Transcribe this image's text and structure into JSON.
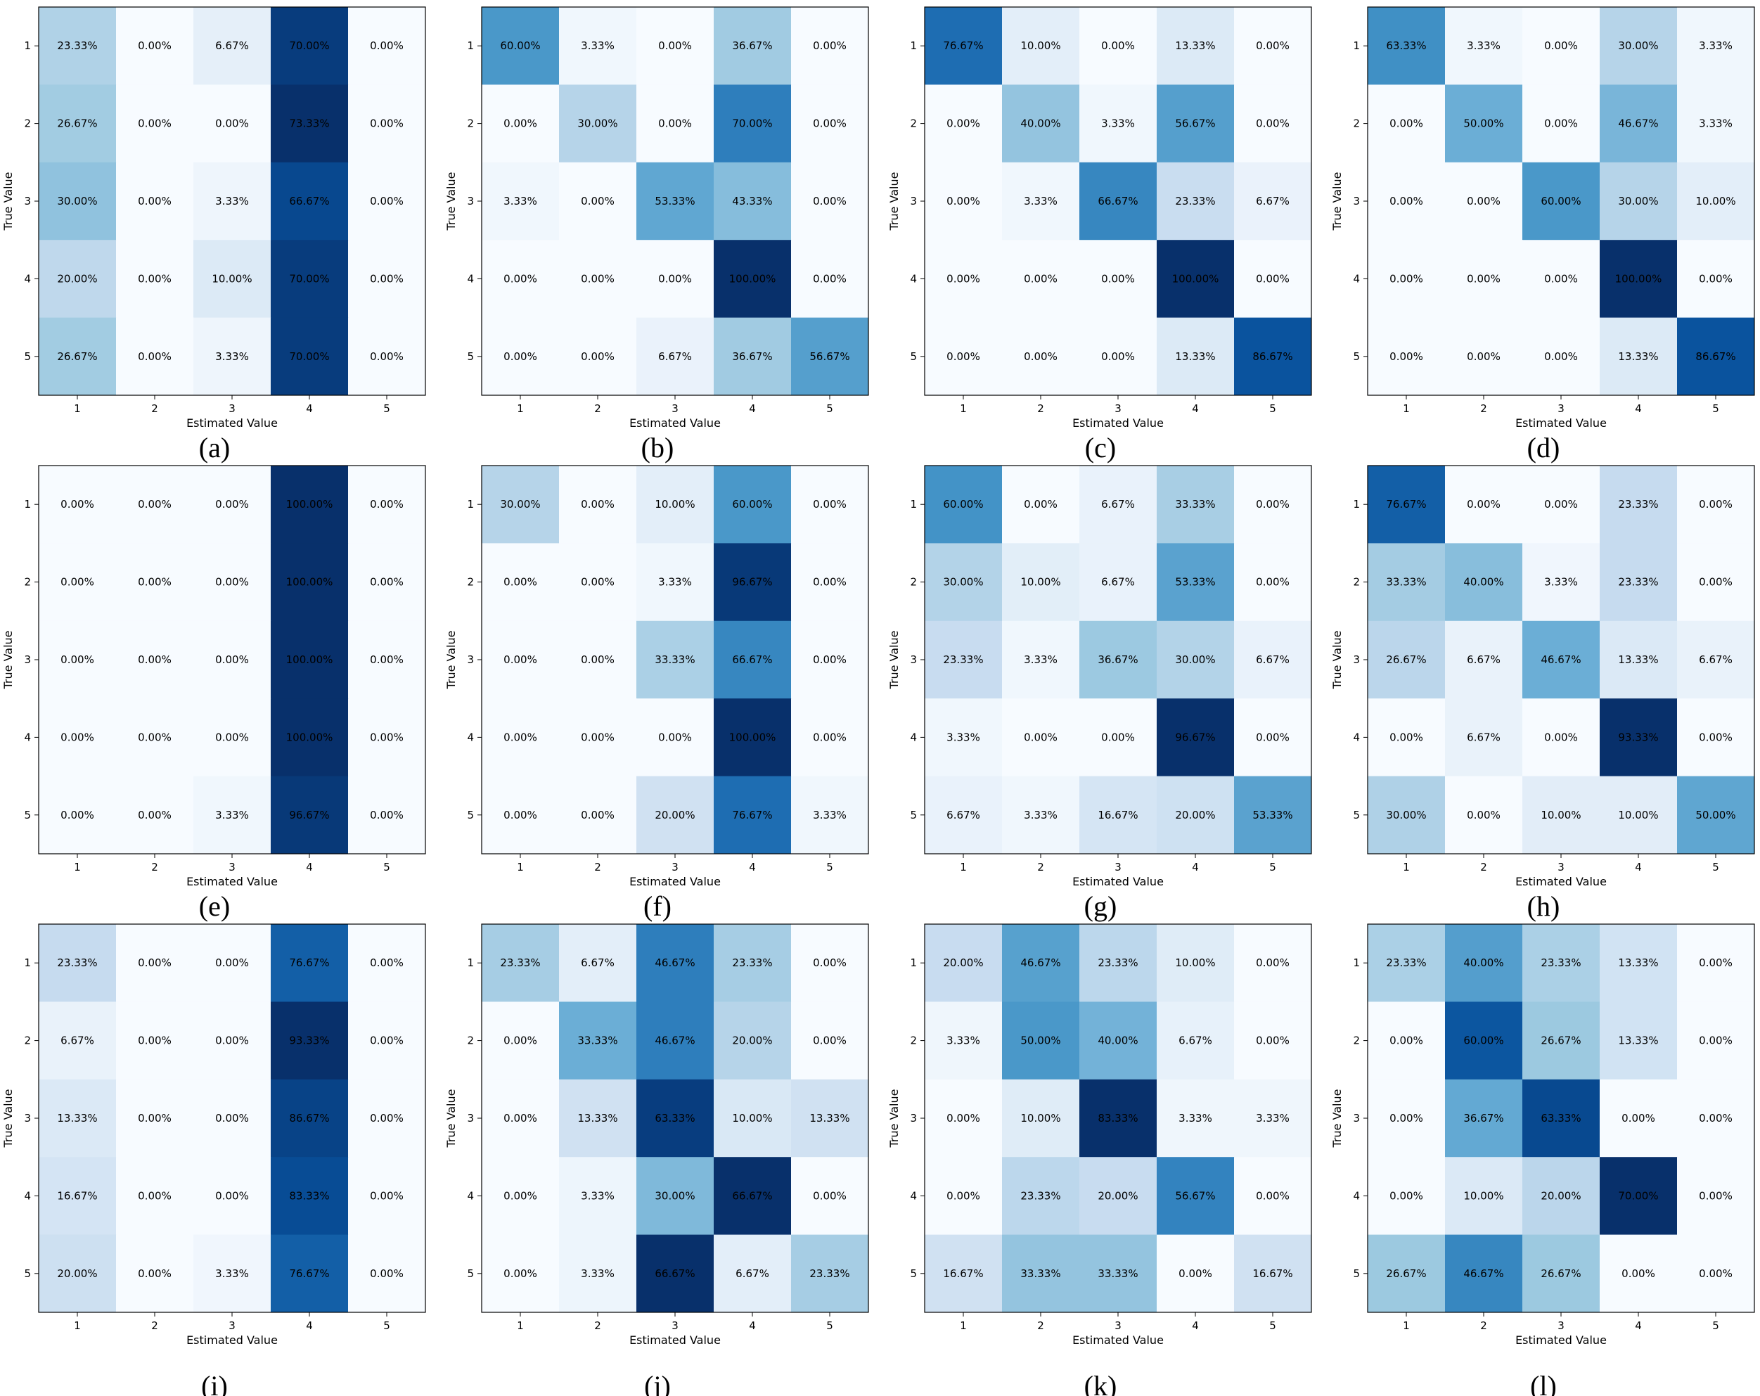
{
  "chart_data": [
    {
      "type": "heatmap",
      "label": "(a)",
      "xlabel": "Estimated Value",
      "ylabel": "True Value",
      "categories": [
        "1",
        "2",
        "3",
        "4",
        "5"
      ],
      "values": [
        [
          23.33,
          0,
          6.67,
          70,
          0
        ],
        [
          26.67,
          0,
          0,
          73.33,
          0
        ],
        [
          30,
          0,
          3.33,
          66.67,
          0
        ],
        [
          20,
          0,
          10,
          70,
          0
        ],
        [
          26.67,
          0,
          3.33,
          70,
          0
        ]
      ]
    },
    {
      "type": "heatmap",
      "label": "(b)",
      "xlabel": "Estimated Value",
      "ylabel": "True Value",
      "categories": [
        "1",
        "2",
        "3",
        "4",
        "5"
      ],
      "values": [
        [
          60,
          3.33,
          0,
          36.67,
          0
        ],
        [
          0,
          30,
          0,
          70,
          0
        ],
        [
          3.33,
          0,
          53.33,
          43.33,
          0
        ],
        [
          0,
          0,
          0,
          100,
          0
        ],
        [
          0,
          0,
          6.67,
          36.67,
          56.67
        ]
      ]
    },
    {
      "type": "heatmap",
      "label": "(c)",
      "xlabel": "Estimated Value",
      "ylabel": "True Value",
      "categories": [
        "1",
        "2",
        "3",
        "4",
        "5"
      ],
      "values": [
        [
          76.67,
          10,
          0,
          13.33,
          0
        ],
        [
          0,
          40,
          3.33,
          56.67,
          0
        ],
        [
          0,
          3.33,
          66.67,
          23.33,
          6.67
        ],
        [
          0,
          0,
          0,
          100,
          0
        ],
        [
          0,
          0,
          0,
          13.33,
          86.67
        ]
      ]
    },
    {
      "type": "heatmap",
      "label": "(d)",
      "xlabel": "Estimated Value",
      "ylabel": "True Value",
      "categories": [
        "1",
        "2",
        "3",
        "4",
        "5"
      ],
      "values": [
        [
          63.33,
          3.33,
          0,
          30,
          3.33
        ],
        [
          0,
          50,
          0,
          46.67,
          3.33
        ],
        [
          0,
          0,
          60,
          30,
          10
        ],
        [
          0,
          0,
          0,
          100,
          0
        ],
        [
          0,
          0,
          0,
          13.33,
          86.67
        ]
      ]
    },
    {
      "type": "heatmap",
      "label": "(e)",
      "xlabel": "Estimated Value",
      "ylabel": "True Value",
      "categories": [
        "1",
        "2",
        "3",
        "4",
        "5"
      ],
      "values": [
        [
          0,
          0,
          0,
          100,
          0
        ],
        [
          0,
          0,
          0,
          100,
          0
        ],
        [
          0,
          0,
          0,
          100,
          0
        ],
        [
          0,
          0,
          0,
          100,
          0
        ],
        [
          0,
          0,
          3.33,
          96.67,
          0
        ]
      ]
    },
    {
      "type": "heatmap",
      "label": "(f)",
      "xlabel": "Estimated Value",
      "ylabel": "True Value",
      "categories": [
        "1",
        "2",
        "3",
        "4",
        "5"
      ],
      "values": [
        [
          30,
          0,
          10,
          60,
          0
        ],
        [
          0,
          0,
          3.33,
          96.67,
          0
        ],
        [
          0,
          0,
          33.33,
          66.67,
          0
        ],
        [
          0,
          0,
          0,
          100,
          0
        ],
        [
          0,
          0,
          20,
          76.67,
          3.33
        ]
      ]
    },
    {
      "type": "heatmap",
      "label": "(g)",
      "xlabel": "Estimated Value",
      "ylabel": "True Value",
      "categories": [
        "1",
        "2",
        "3",
        "4",
        "5"
      ],
      "values": [
        [
          60,
          0,
          6.67,
          33.33,
          0
        ],
        [
          30,
          10,
          6.67,
          53.33,
          0
        ],
        [
          23.33,
          3.33,
          36.67,
          30,
          6.67
        ],
        [
          3.33,
          0,
          0,
          96.67,
          0
        ],
        [
          6.67,
          3.33,
          16.67,
          20,
          53.33
        ]
      ]
    },
    {
      "type": "heatmap",
      "label": "(h)",
      "xlabel": "Estimated Value",
      "ylabel": "True Value",
      "categories": [
        "1",
        "2",
        "3",
        "4",
        "5"
      ],
      "values": [
        [
          76.67,
          0,
          0,
          23.33,
          0
        ],
        [
          33.33,
          40,
          3.33,
          23.33,
          0
        ],
        [
          26.67,
          6.67,
          46.67,
          13.33,
          6.67
        ],
        [
          0,
          6.67,
          0,
          93.33,
          0
        ],
        [
          30,
          0,
          10,
          10,
          50
        ]
      ]
    },
    {
      "type": "heatmap",
      "label": "(i)",
      "xlabel": "Estimated Value",
      "ylabel": "True Value",
      "categories": [
        "1",
        "2",
        "3",
        "4",
        "5"
      ],
      "values": [
        [
          23.33,
          0,
          0,
          76.67,
          0
        ],
        [
          6.67,
          0,
          0,
          93.33,
          0
        ],
        [
          13.33,
          0,
          0,
          86.67,
          0
        ],
        [
          16.67,
          0,
          0,
          83.33,
          0
        ],
        [
          20,
          0,
          3.33,
          76.67,
          0
        ]
      ]
    },
    {
      "type": "heatmap",
      "label": "(j)",
      "xlabel": "Estimated Value",
      "ylabel": "True Value",
      "categories": [
        "1",
        "2",
        "3",
        "4",
        "5"
      ],
      "values": [
        [
          23.33,
          6.67,
          46.67,
          23.33,
          0
        ],
        [
          0,
          33.33,
          46.67,
          20,
          0
        ],
        [
          0,
          13.33,
          63.33,
          10,
          13.33
        ],
        [
          0,
          3.33,
          30,
          66.67,
          0
        ],
        [
          0,
          3.33,
          66.67,
          6.67,
          23.33
        ]
      ]
    },
    {
      "type": "heatmap",
      "label": "(k)",
      "xlabel": "Estimated Value",
      "ylabel": "True Value",
      "categories": [
        "1",
        "2",
        "3",
        "4",
        "5"
      ],
      "values": [
        [
          20,
          46.67,
          23.33,
          10,
          0
        ],
        [
          3.33,
          50,
          40,
          6.67,
          0
        ],
        [
          0,
          10,
          83.33,
          3.33,
          3.33
        ],
        [
          0,
          23.33,
          20,
          56.67,
          0
        ],
        [
          16.67,
          33.33,
          33.33,
          0,
          16.67
        ]
      ]
    },
    {
      "type": "heatmap",
      "label": "(l)",
      "xlabel": "Estimated Value",
      "ylabel": "True Value",
      "categories": [
        "1",
        "2",
        "3",
        "4",
        "5"
      ],
      "values": [
        [
          23.33,
          40,
          23.33,
          13.33,
          0
        ],
        [
          0,
          60,
          26.67,
          13.33,
          0
        ],
        [
          0,
          36.67,
          63.33,
          0,
          0
        ],
        [
          0,
          10,
          20,
          70,
          0
        ],
        [
          26.67,
          46.67,
          26.67,
          0,
          0
        ]
      ]
    }
  ]
}
